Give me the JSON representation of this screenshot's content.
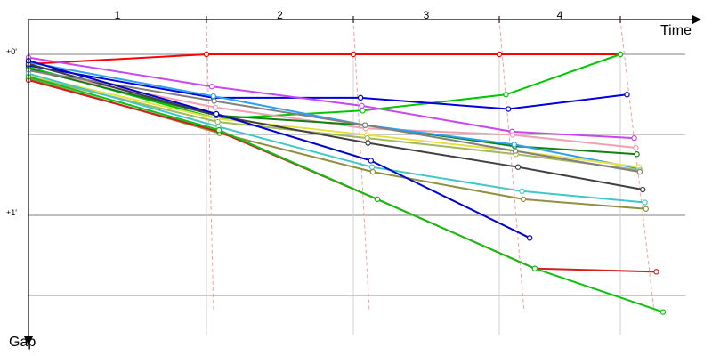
{
  "chart_data": {
    "type": "line",
    "xlabel": "Time",
    "ylabel": "Gap",
    "laps": [
      "1",
      "2",
      "3",
      "4"
    ],
    "y_ticks": [
      {
        "value": 0,
        "label": "+0'"
      },
      {
        "value": 1,
        "label": "+1'"
      }
    ],
    "ylim": [
      0,
      1.6
    ],
    "grid": true,
    "series": [
      {
        "color": "#ff0000",
        "points": [
          [
            0,
            0.06
          ],
          [
            1,
            0.0
          ],
          [
            2,
            0.0
          ],
          [
            3,
            0.0
          ],
          [
            4,
            0.0
          ]
        ]
      },
      {
        "color": "#00c800",
        "points": [
          [
            0,
            0.08
          ],
          [
            1,
            0.4
          ],
          [
            2,
            0.35
          ],
          [
            3,
            0.25
          ],
          [
            4,
            0.0
          ]
        ]
      },
      {
        "color": "#0000dd",
        "points": [
          [
            0,
            0.07
          ],
          [
            1,
            0.27
          ],
          [
            2,
            0.27
          ],
          [
            3,
            0.34
          ],
          [
            4,
            0.25
          ]
        ]
      },
      {
        "color": "#c848f0",
        "points": [
          [
            0,
            0.02
          ],
          [
            1,
            0.2
          ],
          [
            2,
            0.32
          ],
          [
            3,
            0.48
          ],
          [
            4,
            0.52
          ]
        ]
      },
      {
        "color": "#f0a0b0",
        "points": [
          [
            0,
            0.1
          ],
          [
            1,
            0.33
          ],
          [
            2,
            0.46
          ],
          [
            3,
            0.5
          ],
          [
            4,
            0.58
          ]
        ]
      },
      {
        "color": "#108010",
        "points": [
          [
            0,
            0.09
          ],
          [
            1,
            0.38
          ],
          [
            2,
            0.44
          ],
          [
            3,
            0.57
          ],
          [
            4,
            0.62
          ]
        ]
      },
      {
        "color": "#30a0f0",
        "points": [
          [
            0,
            0.05
          ],
          [
            1,
            0.26
          ],
          [
            2,
            0.44
          ],
          [
            3,
            0.56
          ],
          [
            4,
            0.71
          ]
        ]
      },
      {
        "color": "#e8e040",
        "points": [
          [
            0,
            0.13
          ],
          [
            1,
            0.4
          ],
          [
            2,
            0.5
          ],
          [
            3,
            0.6
          ],
          [
            4,
            0.7
          ]
        ]
      },
      {
        "color": "#a0b860",
        "points": [
          [
            0,
            0.14
          ],
          [
            1,
            0.42
          ],
          [
            2,
            0.52
          ],
          [
            3,
            0.62
          ],
          [
            4,
            0.72
          ]
        ]
      },
      {
        "color": "#404040",
        "points": [
          [
            0,
            0.06
          ],
          [
            1,
            0.38
          ],
          [
            2,
            0.55
          ],
          [
            3,
            0.7
          ],
          [
            4,
            0.84
          ]
        ]
      },
      {
        "color": "#808080",
        "points": [
          [
            0,
            0.1
          ],
          [
            1,
            0.29
          ],
          [
            2,
            0.44
          ],
          [
            3,
            0.6
          ],
          [
            4,
            0.73
          ]
        ]
      },
      {
        "color": "#40c8c8",
        "points": [
          [
            0,
            0.12
          ],
          [
            1,
            0.45
          ],
          [
            2,
            0.7
          ],
          [
            3,
            0.85
          ],
          [
            4,
            0.92
          ]
        ]
      },
      {
        "color": "#909040",
        "points": [
          [
            0,
            0.15
          ],
          [
            1,
            0.49
          ],
          [
            2,
            0.73
          ],
          [
            3,
            0.9
          ],
          [
            4,
            0.96
          ]
        ]
      },
      {
        "color": "#0000cc",
        "points": [
          [
            0,
            0.04
          ],
          [
            1,
            0.37
          ],
          [
            2,
            0.66
          ],
          [
            3,
            1.14
          ]
        ]
      },
      {
        "color": "#d02020",
        "points": [
          [
            0,
            0.16
          ],
          [
            1,
            0.48
          ],
          [
            2,
            0.9
          ],
          [
            3,
            1.33
          ],
          [
            4,
            1.35
          ]
        ]
      },
      {
        "color": "#10c010",
        "points": [
          [
            0,
            0.14
          ],
          [
            1,
            0.47
          ],
          [
            2,
            0.9
          ],
          [
            3,
            1.33
          ],
          [
            4,
            1.6
          ]
        ]
      }
    ]
  }
}
